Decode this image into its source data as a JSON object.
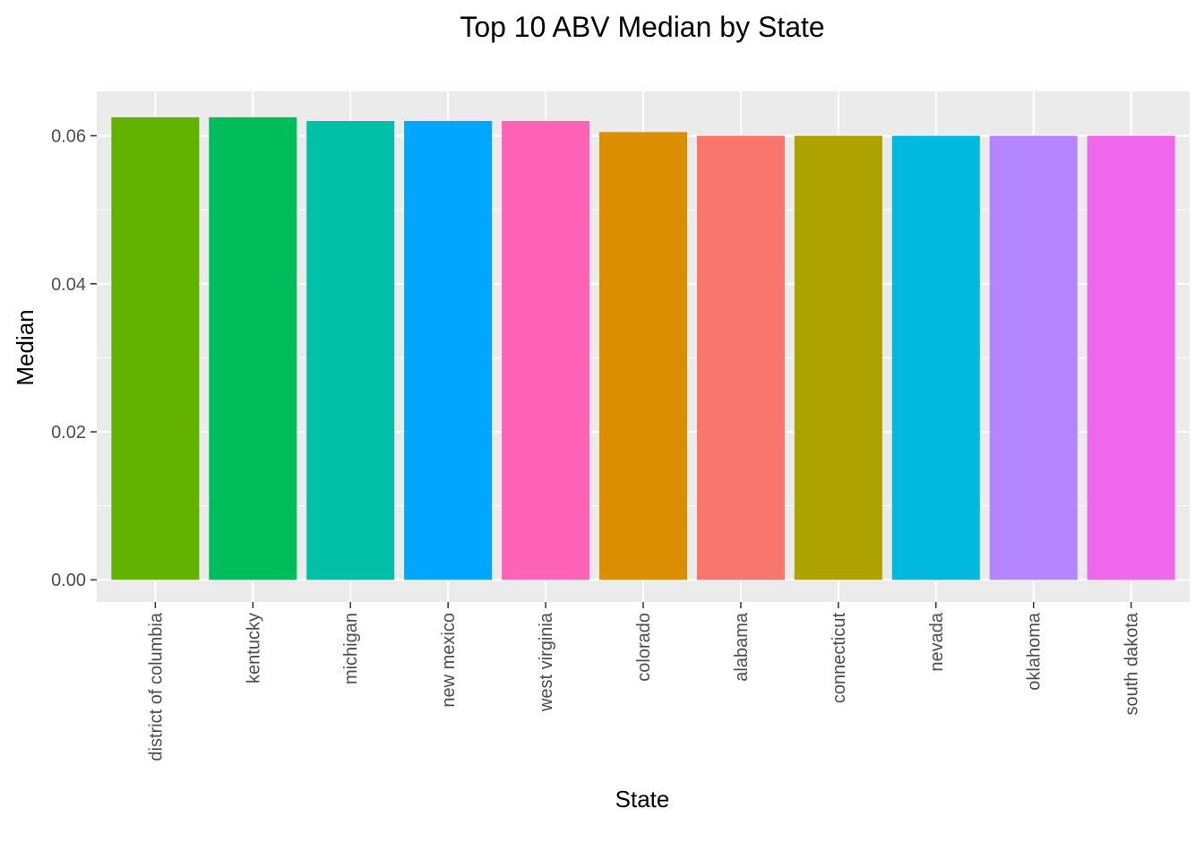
{
  "chart_data": {
    "type": "bar",
    "title": "Top 10 ABV Median by State",
    "xlabel": "State",
    "ylabel": "Median",
    "categories": [
      "district of columbia",
      "kentucky",
      "michigan",
      "new mexico",
      "west virginia",
      "colorado",
      "alabama",
      "connecticut",
      "nevada",
      "oklahoma",
      "south dakota"
    ],
    "values": [
      0.0625,
      0.0625,
      0.062,
      0.062,
      0.062,
      0.0605,
      0.06,
      0.06,
      0.06,
      0.06,
      0.06
    ],
    "colors": [
      "#64B200",
      "#00BD5C",
      "#00C1A7",
      "#00A6FF",
      "#FF63B6",
      "#DB8E00",
      "#F8766D",
      "#AEA200",
      "#00BADE",
      "#B385FF",
      "#EF67EB"
    ],
    "ylim": [
      -0.003,
      0.066
    ],
    "yticks": [
      0.0,
      0.02,
      0.04,
      0.06
    ],
    "ytick_labels": [
      "0.00",
      "0.02",
      "0.04",
      "0.06"
    ],
    "grid": true,
    "legend": "none",
    "panel_background": "#EBEBEB",
    "grid_color": "#FFFFFF"
  }
}
